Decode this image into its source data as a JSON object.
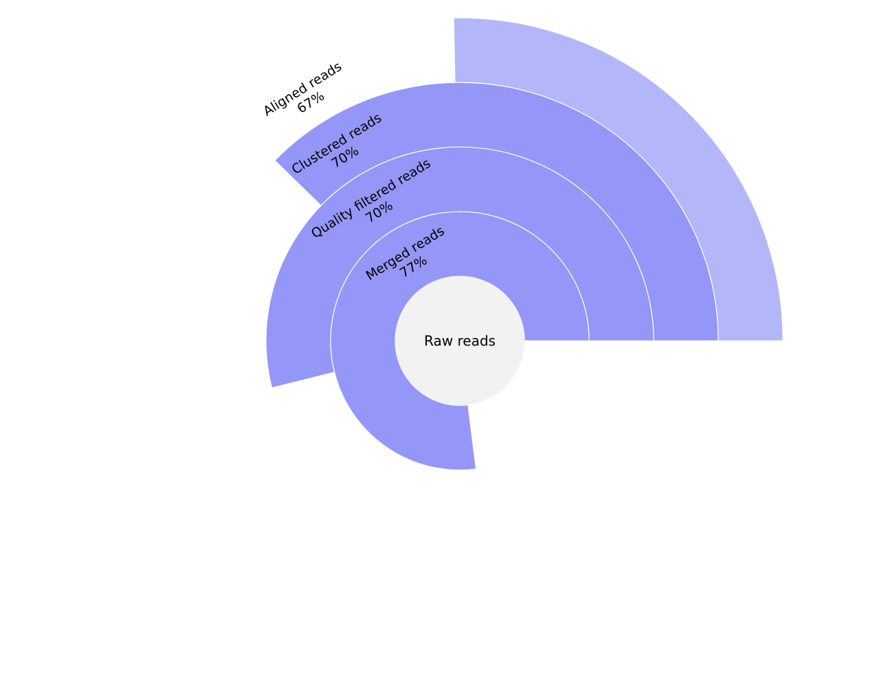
{
  "chart_data": {
    "type": "sunburst",
    "root": {
      "label": "Raw reads",
      "color": "#f2f2f2"
    },
    "levels": [
      {
        "label": "Merged reads",
        "percent_text": "77%",
        "value": 0.77,
        "color": "#9497f7"
      },
      {
        "label": "Quality filtered reads",
        "percent_text": "70%",
        "value": 0.539,
        "color": "#9497f7"
      },
      {
        "label": "Clustered reads",
        "percent_text": "70%",
        "value": 0.377,
        "color": "#9497f7"
      },
      {
        "label": "Aligned reads",
        "percent_text": "67%",
        "value": 0.253,
        "color": "#b3b6f8"
      }
    ]
  }
}
